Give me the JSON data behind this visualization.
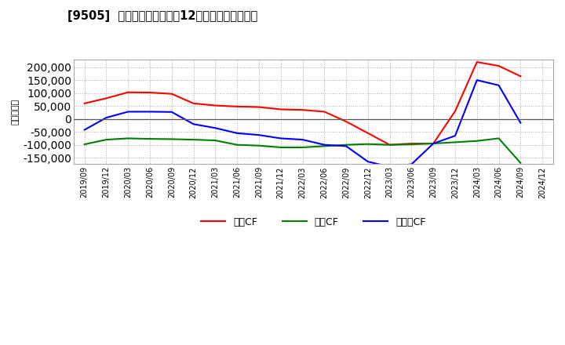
{
  "title": "[9505]  キャッシュフローの12か月移動合計の推移",
  "ylabel": "（百万円）",
  "background_color": "#ffffff",
  "plot_bg_color": "#ffffff",
  "grid_color": "#aaaaaa",
  "x_labels": [
    "2019/09",
    "2019/12",
    "2020/03",
    "2020/06",
    "2020/09",
    "2020/12",
    "2021/03",
    "2021/06",
    "2021/09",
    "2021/12",
    "2022/03",
    "2022/06",
    "2022/09",
    "2022/12",
    "2023/03",
    "2023/06",
    "2023/09",
    "2023/12",
    "2024/03",
    "2024/06",
    "2024/09",
    "2024/12"
  ],
  "operating_cf": [
    60000,
    80000,
    103000,
    102000,
    97000,
    60000,
    52000,
    48000,
    46000,
    37000,
    35000,
    28000,
    -10000,
    -55000,
    -100000,
    -95000,
    -95000,
    30000,
    220000,
    205000,
    165000,
    null
  ],
  "investing_cf": [
    -98000,
    -80000,
    -75000,
    -77000,
    -78000,
    -80000,
    -83000,
    -100000,
    -103000,
    -110000,
    -110000,
    -105000,
    -100000,
    -97000,
    -100000,
    -98000,
    -95000,
    -90000,
    -85000,
    -75000,
    -170000,
    null
  ],
  "free_cf": [
    -42000,
    5000,
    28000,
    28000,
    27000,
    -20000,
    -35000,
    -55000,
    -62000,
    -75000,
    -80000,
    -100000,
    -105000,
    -165000,
    -185000,
    -175000,
    -95000,
    -65000,
    150000,
    130000,
    -15000,
    null
  ],
  "operating_color": "#ff0000",
  "investing_color": "#008000",
  "free_color": "#0000ff",
  "ylim": [
    -175000,
    230000
  ],
  "yticks": [
    -150000,
    -100000,
    -50000,
    0,
    50000,
    100000,
    150000,
    200000
  ],
  "legend_labels": [
    "営業CF",
    "投資CF",
    "フリーCF"
  ]
}
